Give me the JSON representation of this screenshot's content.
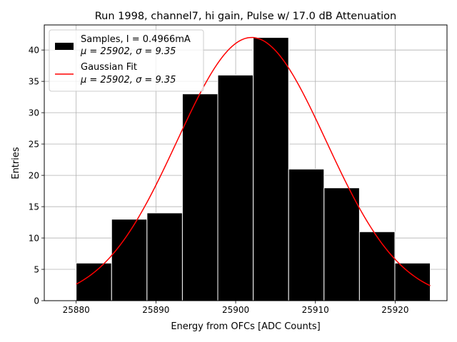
{
  "chart_data": {
    "type": "bar",
    "title": "Run 1998, channel7, hi gain, Pulse w/ 17.0 dB Attenuation",
    "xlabel": "Energy from OFCs [ADC Counts]",
    "ylabel": "Entries",
    "xlim": [
      25876,
      25926.5
    ],
    "ylim": [
      0,
      44
    ],
    "xticks": [
      25880,
      25890,
      25900,
      25910,
      25920
    ],
    "yticks": [
      0,
      5,
      10,
      15,
      20,
      25,
      30,
      35,
      40
    ],
    "grid": true,
    "legend_position": "top-left",
    "histogram": {
      "bin_edges": [
        25880,
        25884.44,
        25888.88,
        25893.32,
        25897.76,
        25902.2,
        25906.64,
        25911.08,
        25915.52,
        25919.96,
        25924.4
      ],
      "counts": [
        6,
        13,
        14,
        33,
        36,
        42,
        21,
        18,
        11,
        6
      ],
      "color": "#000000",
      "edge_color": "#ffffff"
    },
    "gaussian_fit": {
      "mu": 25902,
      "sigma": 9.35,
      "amplitude": 42,
      "x_range": [
        25880,
        25924.4
      ],
      "color": "#ff0000"
    },
    "legend": [
      {
        "label_line1": "Samples, I = 0.4966mA",
        "label_line2_mu": "μ = 25902, ",
        "label_line2_sigma": "σ = 9.35",
        "symbol": "bar"
      },
      {
        "label_line1": "Gaussian Fit",
        "label_line2_mu": "μ = 25902, ",
        "label_line2_sigma": "σ = 9.35",
        "symbol": "line"
      }
    ]
  }
}
